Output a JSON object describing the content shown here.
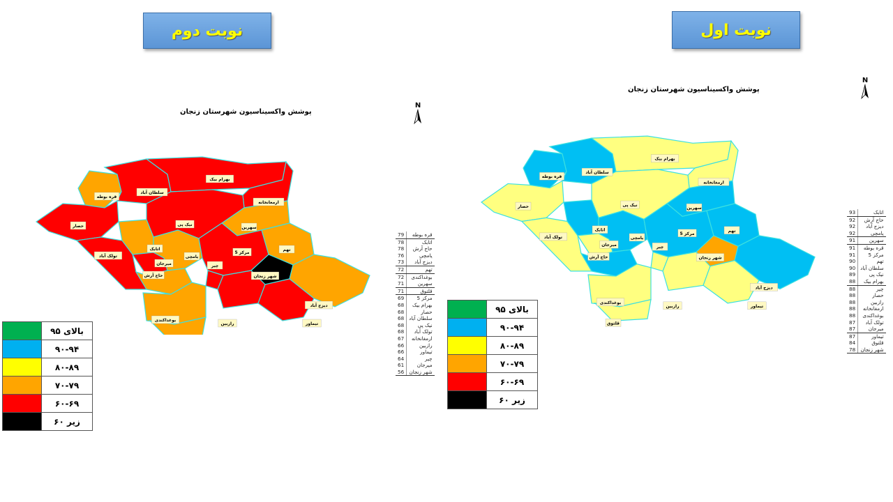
{
  "headers": {
    "round2": "نوبت دوم",
    "round1": "نوبت اول"
  },
  "map_title": "پوشش واکسیناسیون شهرستان زنجان",
  "north_label": "N",
  "colors": {
    "green": "#00b050",
    "blue": "#00b0f0",
    "yellow": "#ffff66",
    "orange": "#ffa500",
    "red": "#ff0000",
    "black": "#000000",
    "border": "#3ce0e0"
  },
  "legend": [
    {
      "label": "بالای ۹۵",
      "color": "#00b050"
    },
    {
      "label": "۹۰-۹۴",
      "color": "#00b0f0"
    },
    {
      "label": "۸۰-۸۹",
      "color": "#ffff00"
    },
    {
      "label": "۷۰-۷۹",
      "color": "#ffa500"
    },
    {
      "label": "۶۰-۶۹",
      "color": "#ff0000"
    },
    {
      "label": "زیر ۶۰",
      "color": "#000000"
    }
  ],
  "rank_round2": [
    {
      "name": "قره بوطه",
      "value": "79"
    },
    {
      "name": "اتابک",
      "value": "78"
    },
    {
      "name": "حاج آرش",
      "value": "78"
    },
    {
      "name": "یامچی",
      "value": "76"
    },
    {
      "name": "دیزج آباد",
      "value": "73"
    },
    {
      "name": "تهم",
      "value": "72"
    },
    {
      "name": "بوغداکندی",
      "value": "72"
    },
    {
      "name": "سهرین",
      "value": "71"
    },
    {
      "name": "قلتوق",
      "value": "71"
    },
    {
      "name": "مرکز 5",
      "value": "69"
    },
    {
      "name": "بهرام بیک",
      "value": "68"
    },
    {
      "name": "حصار",
      "value": "68"
    },
    {
      "name": "سلطان آباد",
      "value": "68"
    },
    {
      "name": "نیک پی",
      "value": "68"
    },
    {
      "name": "تولک آباد",
      "value": "68"
    },
    {
      "name": "ارمغانخانه",
      "value": "67"
    },
    {
      "name": "رازبین",
      "value": "66"
    },
    {
      "name": "تیماور",
      "value": "66"
    },
    {
      "name": "چیر",
      "value": "64"
    },
    {
      "name": "میرجان",
      "value": "61"
    },
    {
      "name": "شهر زنجان",
      "value": "56"
    }
  ],
  "rank_round1": [
    {
      "name": "اتابک",
      "value": "93"
    },
    {
      "name": "حاج آرش",
      "value": "92"
    },
    {
      "name": "دیزج آباد",
      "value": "92"
    },
    {
      "name": "یامچی",
      "value": "92"
    },
    {
      "name": "سهرین",
      "value": "91"
    },
    {
      "name": "قره بوطه",
      "value": "91"
    },
    {
      "name": "مرکز 5",
      "value": "91"
    },
    {
      "name": "تهم",
      "value": "90"
    },
    {
      "name": "سلطان آباد",
      "value": "90"
    },
    {
      "name": "نیک پی",
      "value": "89"
    },
    {
      "name": "بهرام بیک",
      "value": "88"
    },
    {
      "name": "چیر",
      "value": "88"
    },
    {
      "name": "حصار",
      "value": "88"
    },
    {
      "name": "رازبین",
      "value": "88"
    },
    {
      "name": "ارمغانخانه",
      "value": "88"
    },
    {
      "name": "بوغداکندی",
      "value": "88"
    },
    {
      "name": "تولک آباد",
      "value": "87"
    },
    {
      "name": "میرجان",
      "value": "87"
    },
    {
      "name": "تیماور",
      "value": "87"
    },
    {
      "name": "قلتوق",
      "value": "84"
    },
    {
      "name": "شهر زنجان",
      "value": "78"
    }
  ],
  "map_round2": {
    "regions": [
      {
        "name": "قره بوطه",
        "color": "#ffa500"
      },
      {
        "name": "سلطان آباد",
        "color": "#ff0000"
      },
      {
        "name": "بهرام بیک",
        "color": "#ff0000"
      },
      {
        "name": "ارمغانخانه",
        "color": "#ff0000"
      },
      {
        "name": "حصار",
        "color": "#ff0000"
      },
      {
        "name": "نیک پی",
        "color": "#ff0000"
      },
      {
        "name": "سهرین",
        "color": "#ffa500"
      },
      {
        "name": "اتابک",
        "color": "#ffa500"
      },
      {
        "name": "تولک آباد",
        "color": "#ff0000"
      },
      {
        "name": "میرجان",
        "color": "#ff0000"
      },
      {
        "name": "یامچی",
        "color": "#ffa500"
      },
      {
        "name": "حاج آرش",
        "color": "#ffa500"
      },
      {
        "name": "مرکز 5",
        "color": "#ff0000"
      },
      {
        "name": "چیر",
        "color": "#ff0000"
      },
      {
        "name": "تهم",
        "color": "#ffa500"
      },
      {
        "name": "شهر زنجان",
        "color": "#000000"
      },
      {
        "name": "دیزج آباد",
        "color": "#ffa500"
      },
      {
        "name": "بوغداکندی",
        "color": "#ffa500"
      },
      {
        "name": "رازبین",
        "color": "#ff0000"
      },
      {
        "name": "تیماور",
        "color": "#ff0000"
      },
      {
        "name": "قلتوق",
        "color": "#ffa500"
      }
    ]
  },
  "map_round1": {
    "regions": [
      {
        "name": "قره بوطه",
        "color": "#00bff3"
      },
      {
        "name": "سلطان آباد",
        "color": "#00bff3"
      },
      {
        "name": "بهرام بیک",
        "color": "#ffff80"
      },
      {
        "name": "ارمغانخانه",
        "color": "#ffff80"
      },
      {
        "name": "حصار",
        "color": "#ffff80"
      },
      {
        "name": "نیک پی",
        "color": "#ffff80"
      },
      {
        "name": "سهرین",
        "color": "#00bff3"
      },
      {
        "name": "اتابک",
        "color": "#00bff3"
      },
      {
        "name": "تولک آباد",
        "color": "#ffff80"
      },
      {
        "name": "میرجان",
        "color": "#ffff80"
      },
      {
        "name": "یامچی",
        "color": "#00bff3"
      },
      {
        "name": "حاج آرش",
        "color": "#00bff3"
      },
      {
        "name": "مرکز 5",
        "color": "#00bff3"
      },
      {
        "name": "چیر",
        "color": "#ffff80"
      },
      {
        "name": "تهم",
        "color": "#00bff3"
      },
      {
        "name": "شهر زنجان",
        "color": "#ffa500"
      },
      {
        "name": "دیزج آباد",
        "color": "#00bff3"
      },
      {
        "name": "بوغداکندی",
        "color": "#ffff80"
      },
      {
        "name": "رازبین",
        "color": "#ffff80"
      },
      {
        "name": "تیماور",
        "color": "#ffff80"
      },
      {
        "name": "قلتوق",
        "color": "#ffff80"
      }
    ]
  }
}
